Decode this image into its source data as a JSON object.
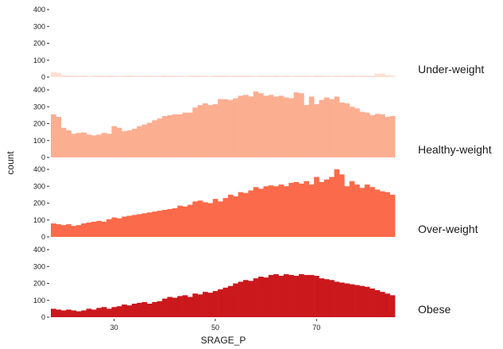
{
  "chart_data": {
    "type": "bar",
    "subtype": "faceted-histogram",
    "title": "",
    "xlabel": "SRAGE_P",
    "ylabel": "count",
    "xlim": [
      17.5,
      85.5
    ],
    "ylim": [
      0,
      400
    ],
    "x_ticks": [
      30,
      50,
      70
    ],
    "y_ticks": [
      0,
      100,
      200,
      300,
      400
    ],
    "bin_start": 18,
    "bin_width": 1,
    "grid": false,
    "legend": "none",
    "series": [
      {
        "name": "Under-weight",
        "color": "#FEE0D2",
        "values": [
          30,
          25,
          12,
          10,
          9,
          8,
          10,
          7,
          9,
          9,
          8,
          10,
          8,
          7,
          9,
          10,
          8,
          7,
          8,
          9,
          7,
          8,
          10,
          9,
          8,
          8,
          7,
          9,
          10,
          9,
          8,
          7,
          9,
          10,
          9,
          8,
          9,
          10,
          9,
          8,
          7,
          9,
          8,
          9,
          10,
          8,
          9,
          7,
          8,
          9,
          9,
          8,
          10,
          9,
          8,
          7,
          9,
          8,
          9,
          10,
          8,
          9,
          10,
          8,
          20,
          22,
          12,
          10
        ]
      },
      {
        "name": "Healthy-weight",
        "color": "#FCAE91",
        "values": [
          255,
          240,
          175,
          160,
          140,
          145,
          148,
          135,
          130,
          135,
          145,
          140,
          185,
          175,
          155,
          160,
          170,
          185,
          195,
          205,
          220,
          230,
          245,
          250,
          255,
          255,
          265,
          265,
          295,
          310,
          320,
          310,
          315,
          345,
          345,
          340,
          350,
          365,
          370,
          360,
          390,
          380,
          365,
          370,
          360,
          365,
          355,
          350,
          385,
          380,
          310,
          360,
          315,
          340,
          355,
          345,
          360,
          325,
          320,
          300,
          290,
          270,
          265,
          250,
          258,
          255,
          240,
          245,
          240,
          265,
          250,
          255,
          260,
          258,
          240,
          245,
          250,
          245,
          240,
          235,
          230,
          225,
          200,
          195,
          190
        ]
      },
      {
        "name": "Over-weight",
        "color": "#FB6A4A",
        "values": [
          80,
          75,
          70,
          75,
          65,
          70,
          80,
          85,
          90,
          95,
          90,
          105,
          115,
          110,
          120,
          125,
          130,
          135,
          140,
          145,
          150,
          155,
          160,
          165,
          170,
          185,
          180,
          190,
          210,
          215,
          205,
          200,
          225,
          210,
          230,
          250,
          240,
          265,
          260,
          275,
          295,
          285,
          300,
          305,
          300,
          310,
          300,
          320,
          325,
          315,
          330,
          310,
          355,
          325,
          340,
          355,
          400,
          370,
          300,
          330,
          310,
          290,
          310,
          295,
          280,
          270,
          265,
          250,
          255,
          240,
          250,
          270,
          260,
          245,
          240,
          220,
          225,
          230,
          210,
          250,
          245,
          215,
          210,
          230,
          195,
          185,
          180,
          175,
          170,
          160,
          125
        ]
      },
      {
        "name": "Obese",
        "color": "#CB181D",
        "values": [
          50,
          45,
          40,
          45,
          40,
          35,
          40,
          50,
          45,
          55,
          60,
          50,
          60,
          65,
          75,
          70,
          80,
          85,
          90,
          80,
          90,
          95,
          110,
          120,
          115,
          125,
          130,
          120,
          140,
          135,
          150,
          145,
          155,
          165,
          175,
          185,
          200,
          210,
          220,
          215,
          230,
          240,
          235,
          250,
          255,
          245,
          255,
          250,
          245,
          255,
          250,
          250,
          245,
          230,
          225,
          220,
          210,
          205,
          200,
          195,
          190,
          185,
          180,
          170,
          160,
          150,
          140,
          130,
          125,
          120,
          115,
          110,
          105,
          100,
          100,
          95,
          95,
          90,
          85,
          80,
          75,
          70,
          65,
          60,
          55,
          50,
          45,
          40,
          35
        ]
      }
    ]
  }
}
